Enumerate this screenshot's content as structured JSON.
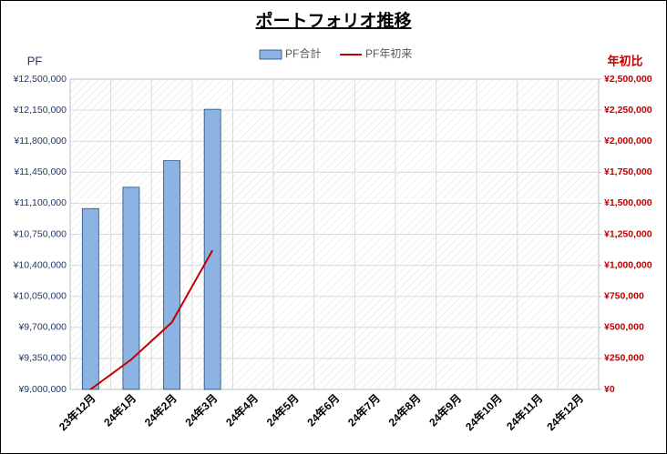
{
  "chart_data": {
    "type": "bar-line",
    "title": "ポートフォリオ推移",
    "y_label": "PF",
    "y2_label": "年初比",
    "categories": [
      "23年12月",
      "24年1月",
      "24年2月",
      "24年3月",
      "24年4月",
      "24年5月",
      "24年6月",
      "24年7月",
      "24年8月",
      "24年9月",
      "24年10月",
      "24年11月",
      "24年12月"
    ],
    "series": [
      {
        "name": "PF合計",
        "type": "bar",
        "color": "#8db3e2",
        "axis": "y",
        "values": [
          11040000,
          11280000,
          11580000,
          12160000,
          null,
          null,
          null,
          null,
          null,
          null,
          null,
          null,
          null
        ]
      },
      {
        "name": "PF年初来",
        "type": "line",
        "color": "#c00000",
        "axis": "y2",
        "values": [
          0,
          240000,
          540000,
          1120000,
          null,
          null,
          null,
          null,
          null,
          null,
          null,
          null,
          null
        ]
      }
    ],
    "ylim": [
      9000000,
      12500000
    ],
    "yticks": [
      {
        "value": 9000000,
        "label": "¥9,000,000"
      },
      {
        "value": 9350000,
        "label": "¥9,350,000"
      },
      {
        "value": 9700000,
        "label": "¥9,700,000"
      },
      {
        "value": 10050000,
        "label": "¥10,050,000"
      },
      {
        "value": 10400000,
        "label": "¥10,400,000"
      },
      {
        "value": 10750000,
        "label": "¥10,750,000"
      },
      {
        "value": 11100000,
        "label": "¥11,100,000"
      },
      {
        "value": 11450000,
        "label": "¥11,450,000"
      },
      {
        "value": 11800000,
        "label": "¥11,800,000"
      },
      {
        "value": 12150000,
        "label": "¥12,150,000"
      },
      {
        "value": 12500000,
        "label": "¥12,500,000"
      }
    ],
    "y2lim": [
      0,
      2500000
    ],
    "y2ticks": [
      {
        "value": 0,
        "label": "¥0"
      },
      {
        "value": 250000,
        "label": "¥250,000"
      },
      {
        "value": 500000,
        "label": "¥500,000"
      },
      {
        "value": 750000,
        "label": "¥750,000"
      },
      {
        "value": 1000000,
        "label": "¥1,000,000"
      },
      {
        "value": 1250000,
        "label": "¥1,250,000"
      },
      {
        "value": 1500000,
        "label": "¥1,500,000"
      },
      {
        "value": 1750000,
        "label": "¥1,750,000"
      },
      {
        "value": 2000000,
        "label": "¥2,000,000"
      },
      {
        "value": 2250000,
        "label": "¥2,250,000"
      },
      {
        "value": 2500000,
        "label": "¥2,500,000"
      }
    ],
    "grid": true,
    "legend": "top"
  }
}
